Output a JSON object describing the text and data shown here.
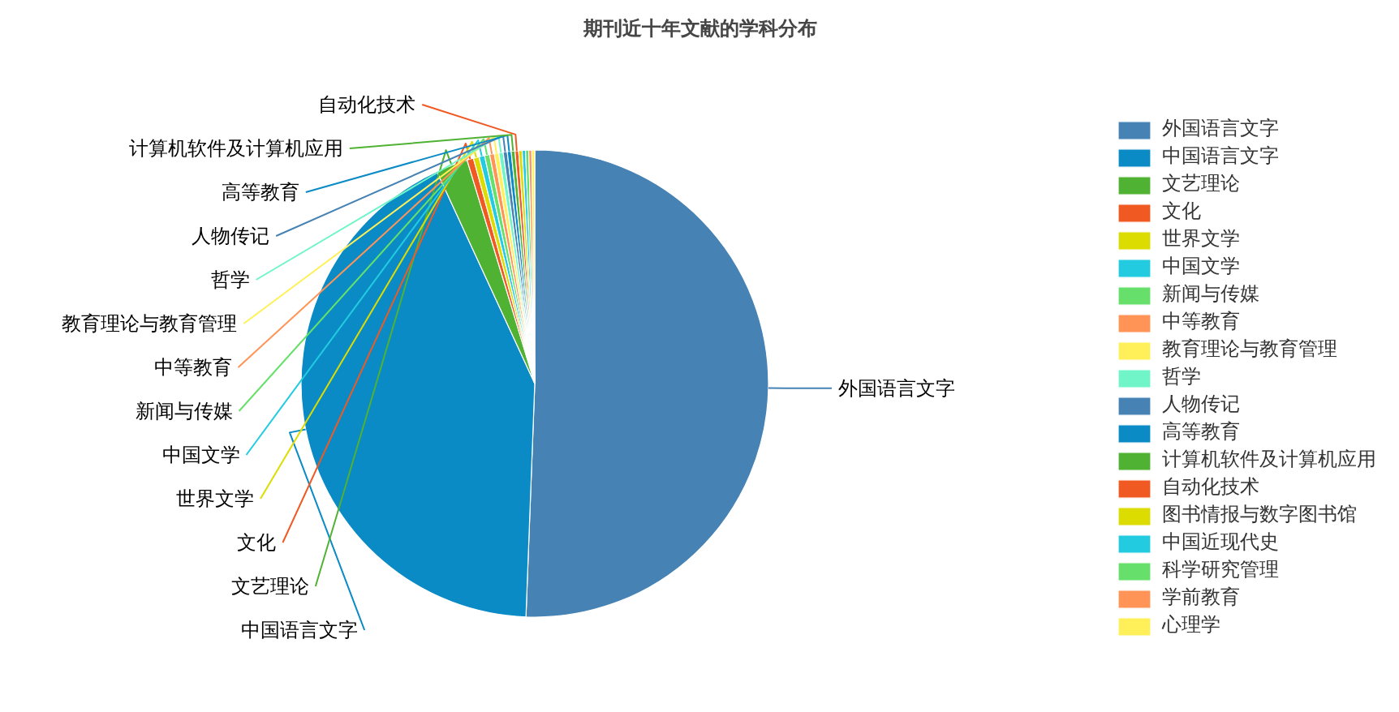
{
  "chart_data": {
    "type": "pie",
    "title": "期刊近十年文献的学科分布",
    "categories": [
      "外国语言文字",
      "中国语言文字",
      "文艺理论",
      "文化",
      "世界文学",
      "中国文学",
      "新闻与传媒",
      "中等教育",
      "教育理论与教育管理",
      "哲学",
      "人物传记",
      "高等教育",
      "计算机软件及计算机应用",
      "自动化技术",
      "图书情报与数字图书馆",
      "中国近现代史",
      "科学研究管理",
      "学前教育",
      "心理学"
    ],
    "values": [
      50.6,
      42.52,
      2.2,
      0.45,
      0.4,
      0.38,
      0.35,
      0.33,
      0.31,
      0.3,
      0.28,
      0.27,
      0.26,
      0.25,
      0.24,
      0.23,
      0.22,
      0.21,
      0.2
    ],
    "colors": [
      "#4682b4",
      "#0a8bc6",
      "#50b233",
      "#f05a22",
      "#dcdc00",
      "#22cbe0",
      "#66e06a",
      "#ff9456",
      "#fff05a",
      "#70f5c8",
      "#4682b4",
      "#0a8bc6",
      "#50b233",
      "#f05a22",
      "#dcdc00",
      "#22cbe0",
      "#66e06a",
      "#ff9456",
      "#fff05a"
    ],
    "legend": "right"
  }
}
